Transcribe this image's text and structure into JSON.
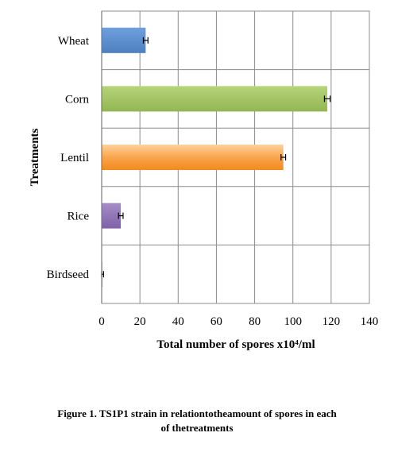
{
  "chart_data": {
    "type": "bar",
    "orientation": "horizontal",
    "categories": [
      "Wheat",
      "Corn",
      "Lentil",
      "Rice",
      "Birdseed"
    ],
    "values": [
      23,
      118,
      95,
      10,
      0.5
    ],
    "errors": [
      1.2,
      1.5,
      1.2,
      1.2,
      0.5
    ],
    "colors": [
      "#5b8ecf",
      "#a8c866",
      "#f8a34c",
      "#9574b8",
      "#cccccc"
    ],
    "xlabel": "Total number of spores x10⁴/ml",
    "ylabel": "Treatments",
    "xlim": [
      0,
      140
    ],
    "xticks": [
      0,
      20,
      40,
      60,
      80,
      100,
      120,
      140
    ],
    "grid": true
  },
  "caption": {
    "line1": "Figure 1. TS1P1 strain in relationtotheamount of spores in each",
    "line2": "of thetreatments"
  }
}
